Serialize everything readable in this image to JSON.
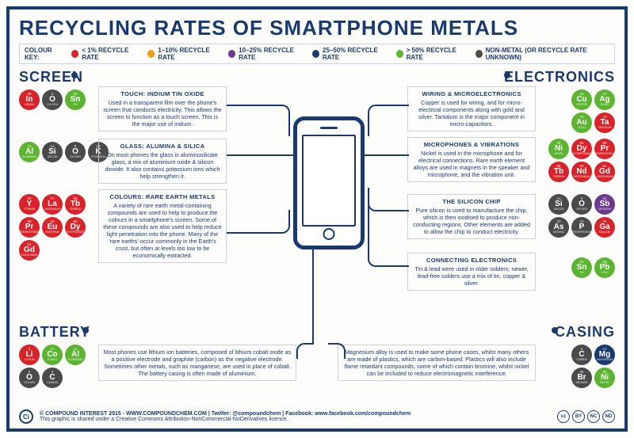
{
  "title": "RECYCLING RATES OF SMARTPHONE METALS",
  "colors": {
    "red": "#d8232a",
    "orange": "#f39c12",
    "purple": "#6b3a8c",
    "navy": "#1a3a6e",
    "green": "#5cb531",
    "grey": "#4a4a4a",
    "frame": "#1a3a6e",
    "box_border": "#c9d3e0"
  },
  "legend": {
    "label": "COLOUR KEY:",
    "items": [
      {
        "color": "#d8232a",
        "text": "< 1% RECYCLE RATE"
      },
      {
        "color": "#f39c12",
        "text": "1–10% RECYCLE RATE"
      },
      {
        "color": "#6b3a8c",
        "text": "10–25% RECYCLE RATE"
      },
      {
        "color": "#1a3a6e",
        "text": "25–50% RECYCLE RATE"
      },
      {
        "color": "#5cb531",
        "text": "> 50% RECYCLE RATE"
      },
      {
        "color": "#4a4a4a",
        "text": "NON-METAL (OR RECYCLE RATE UNKNOWN)"
      }
    ]
  },
  "sections": {
    "screen": "SCREEN",
    "electronics": "ELECTRONICS",
    "battery": "BATTERY",
    "casing": "CASING"
  },
  "groups": {
    "touch": {
      "title": "TOUCH: INDIUM TIN OXIDE",
      "body": "Used in a transparent film over the phone's screen that conducts electricity. This allows the screen to function as a touch screen. This is the major use of indium.",
      "elements": [
        {
          "sym": "In",
          "num": "49",
          "name": "INDIUM",
          "c": "#d8232a"
        },
        {
          "sym": "O",
          "num": "8",
          "name": "OXYGEN",
          "c": "#4a4a4a"
        },
        {
          "sym": "Sn",
          "num": "50",
          "name": "TIN",
          "c": "#5cb531"
        }
      ]
    },
    "glass": {
      "title": "GLASS: ALUMINA & SILICA",
      "body": "On most phones the glass is aluminosilicate glass, a mix of aluminium oxide & silicon dioxide. It also contains potassium ions which help strengthen it.",
      "elements": [
        {
          "sym": "Al",
          "num": "13",
          "name": "ALUMINIUM",
          "c": "#5cb531"
        },
        {
          "sym": "Si",
          "num": "14",
          "name": "SILICON",
          "c": "#4a4a4a"
        },
        {
          "sym": "O",
          "num": "8",
          "name": "OXYGEN",
          "c": "#4a4a4a"
        },
        {
          "sym": "K",
          "num": "19",
          "name": "POTASSIUM",
          "c": "#4a4a4a"
        }
      ]
    },
    "colours": {
      "title": "COLOURS: RARE EARTH METALS",
      "body": "A variety of rare earth metal-containing compounds are used to help to produce the colours in a smartphone's screen. Some of these compounds are also used to help reduce light penetration into the phone. Many of the 'rare earths' occur commonly in the Earth's crust, but often at levels too low to be economically extracted.",
      "elements": [
        {
          "sym": "Y",
          "num": "39",
          "name": "YTTRIUM",
          "c": "#d8232a"
        },
        {
          "sym": "La",
          "num": "57",
          "name": "LANTHANUM",
          "c": "#d8232a"
        },
        {
          "sym": "Tb",
          "num": "65",
          "name": "TERBIUM",
          "c": "#d8232a"
        },
        {
          "sym": "Pr",
          "num": "59",
          "name": "PRASEODYMIUM",
          "c": "#d8232a"
        },
        {
          "sym": "Eu",
          "num": "63",
          "name": "EUROPIUM",
          "c": "#d8232a"
        },
        {
          "sym": "Dy",
          "num": "66",
          "name": "DYSPROSIUM",
          "c": "#d8232a"
        },
        {
          "sym": "Gd",
          "num": "64",
          "name": "GADOLINIUM",
          "c": "#d8232a"
        }
      ]
    },
    "wiring": {
      "title": "WIRING & MICROELECTRONICS",
      "body": "Copper is used for wiring, and for micro-electrical components along with gold and silver. Tantalum is the major component in micro-capacitors.",
      "elements": [
        {
          "sym": "Cu",
          "num": "29",
          "name": "COPPER",
          "c": "#5cb531"
        },
        {
          "sym": "Ag",
          "num": "47",
          "name": "SILVER",
          "c": "#5cb531"
        },
        {
          "sym": "Au",
          "num": "79",
          "name": "GOLD",
          "c": "#5cb531"
        },
        {
          "sym": "Ta",
          "num": "73",
          "name": "TANTALUM",
          "c": "#d8232a"
        }
      ]
    },
    "mic": {
      "title": "MICROPHONES & VIBRATIONS",
      "body": "Nickel is used in the microphone and for electrical connections. Rare earth element alloys are used in magnets in the speaker and microphone, and the vibration unit.",
      "elements": [
        {
          "sym": "Ni",
          "num": "28",
          "name": "NICKEL",
          "c": "#5cb531"
        },
        {
          "sym": "Dy",
          "num": "66",
          "name": "DYSPROSIUM",
          "c": "#d8232a"
        },
        {
          "sym": "Pr",
          "num": "59",
          "name": "PRASEODYMIUM",
          "c": "#d8232a"
        },
        {
          "sym": "Tb",
          "num": "65",
          "name": "TERBIUM",
          "c": "#d8232a"
        },
        {
          "sym": "Nd",
          "num": "60",
          "name": "NEODYMIUM",
          "c": "#d8232a"
        },
        {
          "sym": "Gd",
          "num": "64",
          "name": "GADOLINIUM",
          "c": "#d8232a"
        }
      ]
    },
    "chip": {
      "title": "THE SILICON CHIP",
      "body": "Pure silicon is used to manufacture the chip, which is then oxidised to produce non-conducting regions. Other elements are added to allow the chip to conduct electricity.",
      "elements": [
        {
          "sym": "Si",
          "num": "14",
          "name": "SILICON",
          "c": "#4a4a4a"
        },
        {
          "sym": "O",
          "num": "8",
          "name": "OXYGEN",
          "c": "#4a4a4a"
        },
        {
          "sym": "Sb",
          "num": "51",
          "name": "ANTIMONY",
          "c": "#6b3a8c"
        },
        {
          "sym": "As",
          "num": "33",
          "name": "ARSENIC",
          "c": "#4a4a4a"
        },
        {
          "sym": "P",
          "num": "15",
          "name": "PHOSPHORUS",
          "c": "#4a4a4a"
        },
        {
          "sym": "Ga",
          "num": "31",
          "name": "GALLIUM",
          "c": "#d8232a"
        }
      ]
    },
    "connect": {
      "title": "CONNECTING ELECTRONICS",
      "body": "Tin & lead were used in older solders; newer, lead-free solders use a mix of tin, copper & silver.",
      "elements": [
        {
          "sym": "Sn",
          "num": "50",
          "name": "TIN",
          "c": "#5cb531"
        },
        {
          "sym": "Pb",
          "num": "82",
          "name": "LEAD",
          "c": "#5cb531"
        }
      ]
    },
    "battery": {
      "title": "",
      "body": "Most phones use lithium ion batteries, composed of lithium cobalt oxide as a positive electrode and graphite (carbon) as the negative electrode. Sometimes other metals, such as manganese, are used in place of cobalt. The battery casing is often made of aluminium.",
      "elements": [
        {
          "sym": "Li",
          "num": "3",
          "name": "LITHIUM",
          "c": "#d8232a"
        },
        {
          "sym": "Co",
          "num": "27",
          "name": "COBALT",
          "c": "#5cb531"
        },
        {
          "sym": "Al",
          "num": "13",
          "name": "ALUMINIUM",
          "c": "#5cb531"
        },
        {
          "sym": "O",
          "num": "8",
          "name": "OXYGEN",
          "c": "#4a4a4a"
        },
        {
          "sym": "C",
          "num": "6",
          "name": "CARBON",
          "c": "#4a4a4a"
        }
      ]
    },
    "casing": {
      "title": "",
      "body": "Magnesium alloy is used to make some phone cases, whilst many others are made of plastics, which are carbon-based. Plastics will also include flame retardant compounds, some of which contain bromine, whilst nickel can be included to reduce electromagnetic interference.",
      "elements": [
        {
          "sym": "C",
          "num": "6",
          "name": "CARBON",
          "c": "#4a4a4a"
        },
        {
          "sym": "Mg",
          "num": "12",
          "name": "MAGNESIUM",
          "c": "#1a3a6e"
        },
        {
          "sym": "Br",
          "num": "35",
          "name": "BROMINE",
          "c": "#4a4a4a"
        },
        {
          "sym": "Ni",
          "num": "28",
          "name": "NICKEL",
          "c": "#5cb531"
        }
      ]
    }
  },
  "footer": {
    "line1": "© COMPOUND INTEREST 2015 - WWW.COMPOUNDCHEM.COM | Twitter: @compoundchem | Facebook: www.facebook.com/compoundchem",
    "line2": "This graphic is shared under a Creative Commons Attribution-NonCommercial-NoDerivatives licence.",
    "ci": "Ci",
    "cc": [
      "cc",
      "BY",
      "NC",
      "ND"
    ]
  }
}
